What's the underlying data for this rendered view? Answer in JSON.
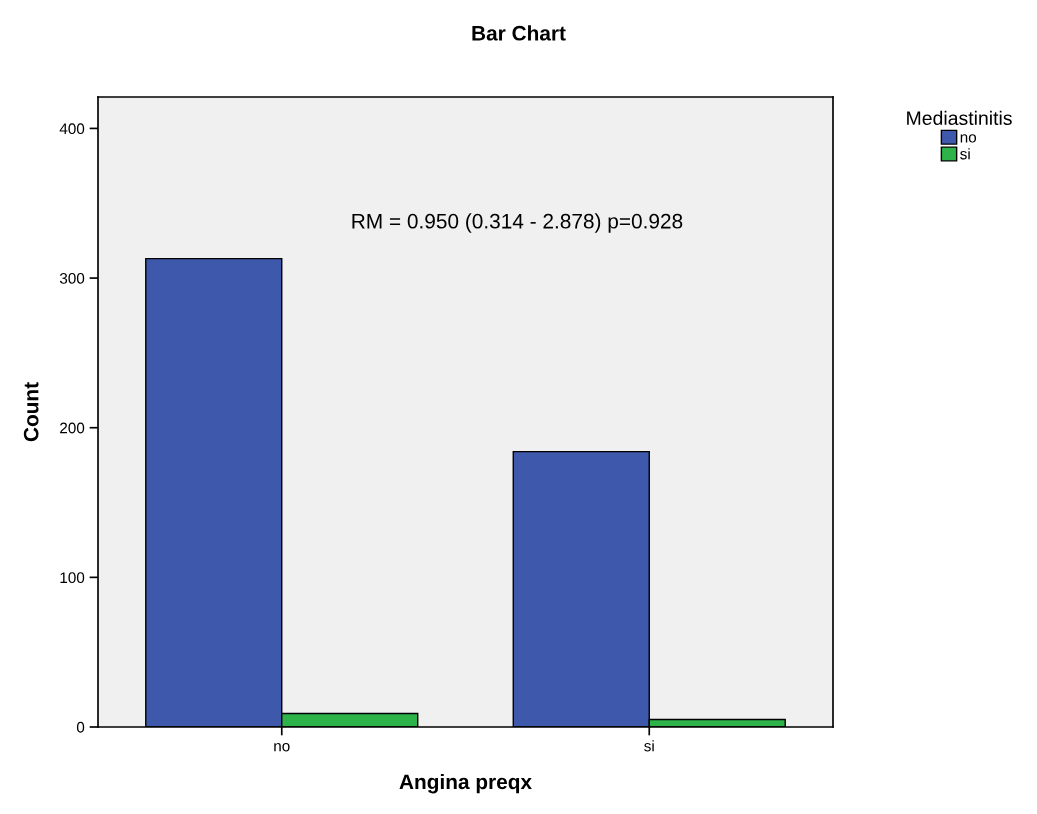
{
  "chart_data": {
    "type": "bar",
    "title": "Bar Chart",
    "xlabel": "Angina preqx",
    "ylabel": "Count",
    "legend_title": "Mediastinitis",
    "categories": [
      "no",
      "si"
    ],
    "series": [
      {
        "name": "no",
        "color": "#3e58ab",
        "values": [
          313,
          184
        ]
      },
      {
        "name": "si",
        "color": "#2db34a",
        "values": [
          9,
          5
        ]
      }
    ],
    "ylim": [
      0,
      421
    ],
    "yticks": [
      0,
      100,
      200,
      300,
      400
    ],
    "grid": false,
    "legend": "right",
    "annotations": [
      "RM = 0.950 (0.314 - 2.878) p=0.928"
    ]
  }
}
